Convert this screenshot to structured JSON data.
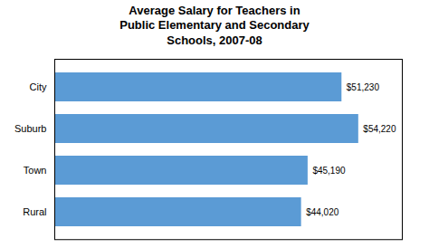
{
  "chart_data": {
    "type": "bar",
    "orientation": "horizontal",
    "title": "Average Salary for Teachers in\nPublic Elementary and Secondary\nSchools, 2007-08",
    "categories": [
      "City",
      "Suburb",
      "Town",
      "Rural"
    ],
    "values": [
      51230,
      54220,
      45190,
      44020
    ],
    "value_labels": [
      "$51,230",
      "$54,220",
      "$45,190",
      "$44,020"
    ],
    "color": "#5B9BD5",
    "xlim": [
      0,
      62000
    ],
    "data_labels": true,
    "tick_labels": "y",
    "grid": false
  }
}
